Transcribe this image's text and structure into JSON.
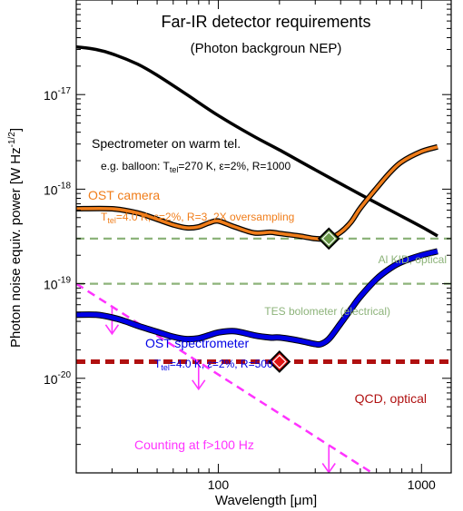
{
  "chart_data": {
    "type": "line",
    "title": "Far-IR detector requirements",
    "subtitle": "(Photon backgroun NEP)",
    "xlabel": "Wavelength [μm]",
    "ylabel": "Photon noise equiv. power [W Hz",
    "ylabel_exp": "-1/2",
    "ylabel_end": "]",
    "x_scale": "log",
    "y_scale": "log",
    "xlim": [
      20,
      1400
    ],
    "ylim": [
      1e-21,
      1e-16
    ],
    "x_ticks": [
      {
        "value": 100,
        "label": "100"
      },
      {
        "value": 1000,
        "label": "1000"
      }
    ],
    "y_ticks": [
      {
        "value": 1e-20,
        "base": "10",
        "exp": "-20"
      },
      {
        "value": 1e-19,
        "base": "10",
        "exp": "-19"
      },
      {
        "value": 1e-18,
        "base": "10",
        "exp": "-18"
      },
      {
        "value": 1e-17,
        "base": "10",
        "exp": "-17"
      }
    ],
    "series": [
      {
        "key": "warm",
        "color": "#000000",
        "x": [
          20,
          25,
          30,
          40,
          50,
          70,
          100,
          150,
          200,
          300,
          500,
          700,
          1000,
          1200
        ],
        "y": [
          3.2e-17,
          3e-17,
          2.7e-17,
          2.1e-17,
          1.6e-17,
          1e-17,
          6e-18,
          3.6e-18,
          2.6e-18,
          1.6e-18,
          8.8e-19,
          6e-19,
          4e-19,
          3.2e-19
        ]
      },
      {
        "key": "ost_camera",
        "color": "#f07d1a",
        "x": [
          20,
          30,
          40,
          50,
          60,
          70,
          80,
          90,
          100,
          120,
          150,
          180,
          200,
          250,
          300,
          350,
          400,
          450,
          500,
          600,
          700,
          800,
          1000,
          1200
        ],
        "y": [
          6.2e-19,
          6.2e-19,
          5.6e-19,
          4.8e-19,
          4.2e-19,
          3.9e-19,
          4e-19,
          4.4e-19,
          4.6e-19,
          4e-19,
          3.45e-19,
          3.5e-19,
          3.4e-19,
          3.2e-19,
          3e-19,
          3e-19,
          3.5e-19,
          4.5e-19,
          6.3e-19,
          1.02e-18,
          1.5e-18,
          1.95e-18,
          2.5e-18,
          2.8e-18
        ]
      },
      {
        "key": "ost_spectrometer",
        "color": "#0000e6",
        "x": [
          20,
          25,
          30,
          35,
          40,
          50,
          60,
          70,
          80,
          90,
          100,
          120,
          150,
          180,
          200,
          250,
          300,
          320,
          350,
          400,
          450,
          500,
          600,
          700,
          800,
          1000,
          1200
        ],
        "y": [
          4.7e-20,
          4.7e-20,
          4.4e-20,
          4e-20,
          3.6e-20,
          3.1e-20,
          2.75e-20,
          2.6e-20,
          2.65e-20,
          2.85e-20,
          3.05e-20,
          3.15e-20,
          2.85e-20,
          2.7e-20,
          2.7e-20,
          2.5e-20,
          2.3e-20,
          2.3e-20,
          2.6e-20,
          3.8e-20,
          5.4e-20,
          7.3e-20,
          1.12e-19,
          1.45e-19,
          1.7e-19,
          2e-19,
          2.2e-19
        ]
      }
    ],
    "reference_lines": [
      {
        "key": "al_kid",
        "y": 3e-19,
        "color": "#8db37a",
        "style": "dashed",
        "label": "Al KID, optical"
      },
      {
        "key": "tes",
        "y": 1e-19,
        "color": "#8db37a",
        "style": "dashed",
        "label": "TES bolometer (electrical)"
      },
      {
        "key": "qcd",
        "y": 1.5e-20,
        "color": "#b01010",
        "style": "dashed",
        "label": "QCD, optical"
      }
    ],
    "counting_line": {
      "color": "#ff33ff",
      "style": "dashed",
      "x": [
        20,
        800
      ],
      "y": [
        1e-19,
        6.3e-22
      ],
      "arrows_at_x": [
        30,
        80,
        350
      ],
      "label": "Counting at f>100 Hz"
    },
    "markers": [
      {
        "key": "kid_point",
        "x": 350,
        "y": 3e-19,
        "fill": "#6a9a4a",
        "edge": "#000000"
      },
      {
        "key": "qcd_point",
        "x": 200,
        "y": 1.5e-20,
        "fill": "#e01515",
        "edge": "#000000"
      }
    ],
    "annotations": {
      "warm_title": "Spectrometer on warm tel.",
      "warm_detail": {
        "pre": "e.g. balloon: T",
        "sub": "tel",
        "post": "=270 K, ε=2%, R=1000"
      },
      "camera_title": "OST camera",
      "camera_detail": {
        "pre": "T",
        "sub": "tel",
        "post": "=4.0 K, ε=2%, R=3, 2X oversampling"
      },
      "spec_title": "OST spectrometer",
      "spec_detail": {
        "pre": "T",
        "sub": "tel",
        "post": "=4.0 K, ε=2%, R=500"
      }
    }
  }
}
